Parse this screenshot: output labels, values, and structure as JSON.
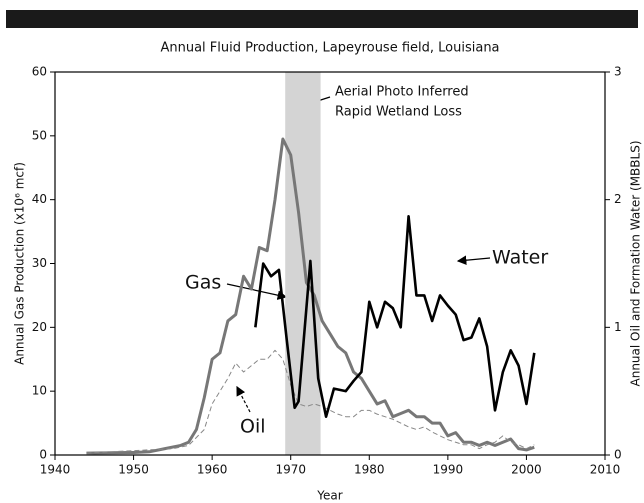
{
  "chart_data": {
    "type": "line",
    "title": "Annual Fluid Production, Lapeyrouse field, Louisiana",
    "x_label": "Year",
    "y_label": "Annual Gas Production (x10⁶ mcf)",
    "y2_label": "Annual Oil and Formation Water (MBBLS)",
    "xlim": [
      1940,
      2010
    ],
    "xticks": [
      1940,
      1950,
      1960,
      1970,
      1980,
      1990,
      2000,
      2010
    ],
    "ylim": [
      0,
      60
    ],
    "yticks": [
      0,
      10,
      20,
      30,
      40,
      50,
      60
    ],
    "y2lim": [
      0,
      3
    ],
    "y2ticks": [
      0,
      1,
      2,
      3
    ],
    "highlight_x": [
      1969.3,
      1973.8
    ],
    "highlight_color": "#d4d4d4",
    "annotations": [
      "Aerial Photo Inferred",
      "Rapid Wetland Loss"
    ],
    "series": [
      {
        "name": "Gas",
        "color": "#777777",
        "dashed": false,
        "x": [
          1944,
          1950,
          1952,
          1954,
          1956,
          1957,
          1958,
          1959,
          1960,
          1961,
          1962,
          1963,
          1964,
          1965,
          1966,
          1967,
          1968,
          1969,
          1970,
          1971,
          1972,
          1973,
          1974,
          1975,
          1976,
          1977,
          1978,
          1979,
          1980,
          1981,
          1982,
          1983,
          1984,
          1985,
          1986,
          1987,
          1988,
          1989,
          1990,
          1991,
          1992,
          1993,
          1994,
          1995,
          1996,
          1997,
          1998,
          1999,
          2000,
          2001
        ],
        "values": [
          0.3,
          0.4,
          0.5,
          1,
          1.5,
          2,
          4,
          9,
          15,
          16,
          21,
          22,
          28,
          26,
          32.5,
          32,
          40,
          49.5,
          47,
          38,
          27,
          25,
          21,
          19,
          17,
          16,
          13,
          12,
          10,
          8,
          8.5,
          6,
          6.5,
          7,
          6,
          6,
          5,
          5,
          3,
          3.5,
          2,
          2,
          1.5,
          2,
          1.5,
          2,
          2.5,
          1,
          0.8,
          1.2
        ]
      },
      {
        "name": "Oil",
        "color": "#888888",
        "dashed": true,
        "axis": "y2",
        "x": [
          1944,
          1955,
          1957,
          1959,
          1960,
          1961,
          1962,
          1963,
          1964,
          1965,
          1966,
          1967,
          1968,
          1969,
          1970,
          1971,
          1972,
          1973,
          1974,
          1975,
          1976,
          1977,
          1978,
          1979,
          1980,
          1981,
          1982,
          1983,
          1984,
          1985,
          1986,
          1987,
          1988,
          1989,
          1990,
          1991,
          1992,
          1993,
          1994,
          1995,
          1996,
          1997,
          1998,
          1999,
          2000,
          2001
        ],
        "values": [
          0.015,
          0.05,
          0.075,
          0.2,
          0.4,
          0.5,
          0.6,
          0.72,
          0.65,
          0.7,
          0.75,
          0.75,
          0.82,
          0.75,
          0.55,
          0.4,
          0.38,
          0.4,
          0.38,
          0.35,
          0.32,
          0.3,
          0.3,
          0.35,
          0.35,
          0.32,
          0.3,
          0.28,
          0.25,
          0.22,
          0.2,
          0.22,
          0.18,
          0.15,
          0.12,
          0.1,
          0.08,
          0.08,
          0.05,
          0.08,
          0.1,
          0.15,
          0.1,
          0.08,
          0.05,
          0.08
        ]
      },
      {
        "name": "Water",
        "color": "#000000",
        "dashed": false,
        "axis": "y2",
        "x": [
          1965.5,
          1966.5,
          1967.5,
          1968.5,
          1969.5,
          1970.5,
          1971,
          1972.5,
          1973.5,
          1974.5,
          1975.5,
          1977,
          1978,
          1979,
          1980,
          1981,
          1982,
          1983,
          1984,
          1985,
          1986,
          1987,
          1988,
          1989,
          1990,
          1991,
          1992,
          1993,
          1994,
          1995,
          1996,
          1997,
          1998,
          1999,
          2000,
          2001
        ],
        "values": [
          1.0,
          1.5,
          1.4,
          1.45,
          0.9,
          0.37,
          0.42,
          1.52,
          0.6,
          0.3,
          0.52,
          0.5,
          0.58,
          0.65,
          1.2,
          1.0,
          1.2,
          1.15,
          1.0,
          1.87,
          1.25,
          1.25,
          1.05,
          1.25,
          1.17,
          1.1,
          0.9,
          0.92,
          1.07,
          0.85,
          0.35,
          0.65,
          0.82,
          0.7,
          0.4,
          0.8
        ]
      }
    ]
  }
}
